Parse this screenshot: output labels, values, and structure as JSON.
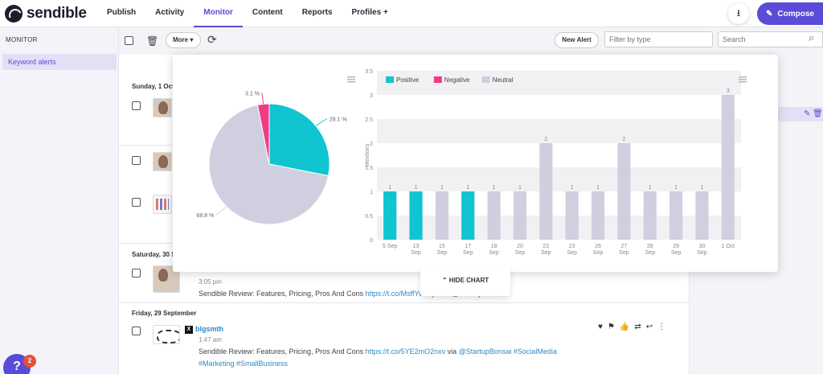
{
  "app": {
    "name": "sendible"
  },
  "nav": {
    "items": [
      "Publish",
      "Activity",
      "Monitor",
      "Content",
      "Reports",
      "Profiles +"
    ],
    "active": "Monitor",
    "compose_label": "Compose"
  },
  "sidebar": {
    "title": "MONITOR",
    "items": [
      {
        "label": "Keyword alerts"
      }
    ]
  },
  "toolbar": {
    "more_label": "More",
    "new_alert_label": "New Alert",
    "filter_placeholder": "Filter by type",
    "search_placeholder": "Search"
  },
  "feed": {
    "dates": [
      "Sunday, 1 Oct",
      "Saturday, 30 S",
      "Friday, 29 September"
    ],
    "post_3_05": {
      "time": "3:05 pm",
      "text_start": "Sendible Review: Features, Pricing, Pros And Cons ",
      "link": "https://t.co/MsffYvSFyil",
      "tail": " via @StartupBonsai"
    },
    "post_bigsmth": {
      "author": "blgsmth",
      "time": "1:47 am",
      "text_start": "Sendible Review: Features, Pricing, Pros And Cons ",
      "link": "https://t.co/5YE2mO2nxv",
      "via": " via ",
      "handle": "@StartupBonsai",
      "tags_line1": " #SocialMedia",
      "tags_line2": "#Marketing #SmallBusiness"
    }
  },
  "help": {
    "badge_count": "2",
    "glyph": "?"
  },
  "chart_popup": {
    "hide_label": "HIDE CHART"
  },
  "colors": {
    "accent": "#5a4bd8",
    "positive": "#10c4d0",
    "negative": "#ee3d86",
    "neutral": "#d0cfe0"
  },
  "chart_data": [
    {
      "type": "pie",
      "slices": [
        {
          "name": "Positive",
          "value": 28.1,
          "color": "#10c4d0"
        },
        {
          "name": "Neutral",
          "value": 68.8,
          "color": "#d0cfe0"
        },
        {
          "name": "Negative",
          "value": 3.1,
          "color": "#ee3d86"
        }
      ],
      "labels": [
        "28.1 %",
        "68.8 %",
        "3.1 %"
      ]
    },
    {
      "type": "bar",
      "legend": [
        "Positive",
        "Negative",
        "Neutral"
      ],
      "legend_position": "top-left",
      "ylabel": "Mentions",
      "ylim": [
        0,
        3.5
      ],
      "yticks": [
        "0",
        "0.5",
        "1",
        "1.5",
        "2",
        "2.5",
        "3",
        "3.5"
      ],
      "categories": [
        [
          "5 Sep"
        ],
        [
          "13",
          "Sep"
        ],
        [
          "15",
          "Sep"
        ],
        [
          "17",
          "Sep"
        ],
        [
          "18",
          "Sep"
        ],
        [
          "20",
          "Sep"
        ],
        [
          "22",
          "Sep"
        ],
        [
          "23",
          "Sep"
        ],
        [
          "26",
          "Sep"
        ],
        [
          "27",
          "Sep"
        ],
        [
          "28",
          "Sep"
        ],
        [
          "29",
          "Sep"
        ],
        [
          "30",
          "Sep"
        ],
        [
          "1 Oct"
        ]
      ],
      "values": [
        1,
        1,
        1,
        1,
        1,
        1,
        2,
        1,
        1,
        2,
        1,
        1,
        1,
        3
      ],
      "series_per_bar": [
        "Positive",
        "Positive",
        "Neutral",
        "Positive",
        "Neutral",
        "Neutral",
        "Neutral",
        "Neutral",
        "Neutral",
        "Neutral",
        "Neutral",
        "Neutral",
        "Neutral",
        "Neutral"
      ],
      "value_labels": [
        "1",
        "1",
        "1",
        "1",
        "1",
        "1",
        "2",
        "1",
        "1",
        "2",
        "1",
        "1",
        "1",
        "3"
      ]
    }
  ]
}
